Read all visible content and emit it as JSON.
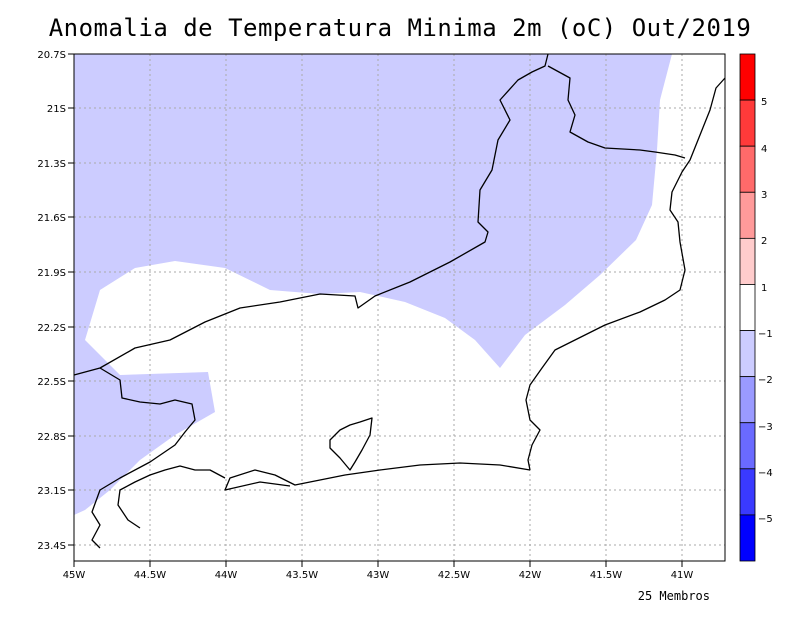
{
  "title": "Anomalia de Temperatura Minima 2m (oC) Out/2019",
  "footer": "25 Membros",
  "lat_labels": [
    "20.7S",
    "21S",
    "21.3S",
    "21.6S",
    "21.9S",
    "22.2S",
    "22.5S",
    "22.8S",
    "23.1S",
    "23.4S"
  ],
  "lon_labels": [
    "45W",
    "44.5W",
    "44W",
    "43.5W",
    "43W",
    "42.5W",
    "42W",
    "41.5W",
    "41W"
  ],
  "colorbar": {
    "labels": [
      "5",
      "4",
      "3",
      "2",
      "1",
      "−1",
      "−2",
      "−3",
      "−4",
      "−5"
    ],
    "colors": [
      "#ff0000",
      "#ff3a3a",
      "#ff6a6a",
      "#ff9a9a",
      "#ffcccc",
      "#ffffff",
      "#ccccff",
      "#9a9aff",
      "#6a6aff",
      "#3a3aff",
      "#0000ff"
    ]
  },
  "anomaly_fill_color": "#ccccff",
  "coastline_color": "#000000",
  "grid": true
}
